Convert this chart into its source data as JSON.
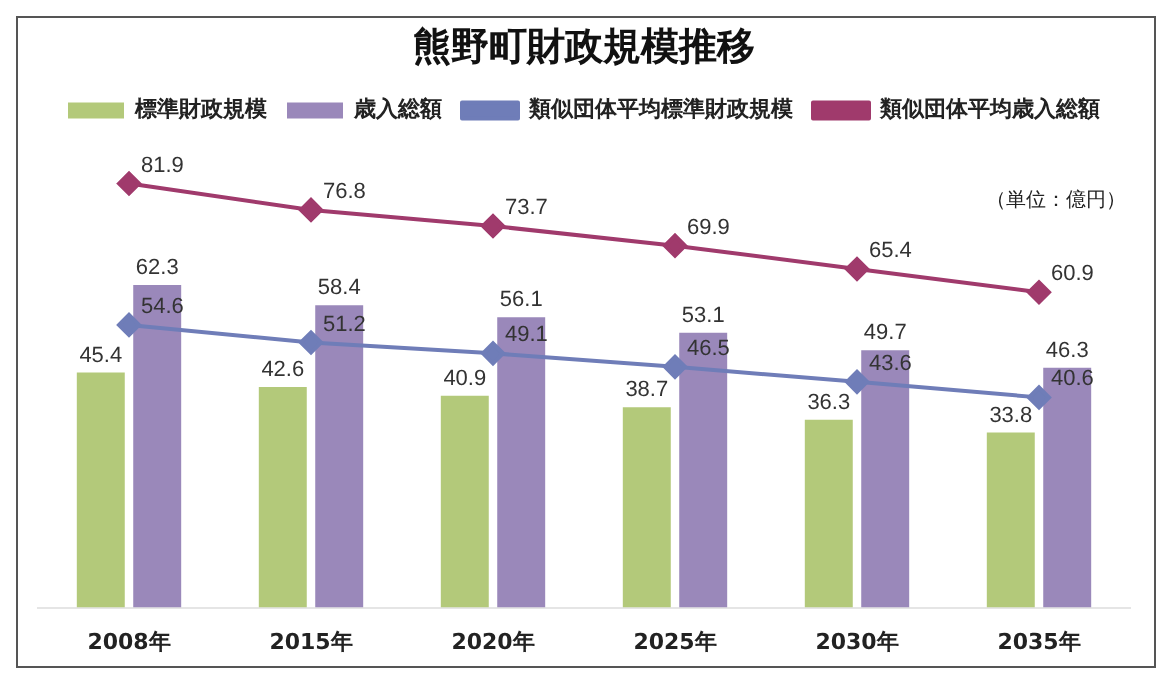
{
  "chart_data": {
    "type": "bar",
    "title": "熊野町財政規模推移",
    "categories": [
      "2008年",
      "2015年",
      "2020年",
      "2025年",
      "2030年",
      "2035年"
    ],
    "series": [
      {
        "name": "標準財政規模",
        "color": "#b3c97a",
        "values": [
          45.4,
          42.6,
          40.9,
          38.7,
          36.3,
          33.8
        ]
      },
      {
        "name": "歳入総額",
        "color": "#9a88ba",
        "values": [
          62.3,
          58.4,
          56.1,
          53.1,
          49.7,
          46.3
        ]
      },
      {
        "name": "類似団体平均標準財政規模",
        "type": "line",
        "color": "#6f7db8",
        "values": [
          54.6,
          51.2,
          49.1,
          46.5,
          43.6,
          40.6
        ]
      },
      {
        "name": "類似団体平均歳入総額",
        "type": "line",
        "color": "#a03a6c",
        "values": [
          81.9,
          76.8,
          73.7,
          69.9,
          65.4,
          60.9
        ]
      }
    ],
    "tick_labels": "x",
    "data_labels": true,
    "grid": false,
    "legend": "top",
    "marker": "diamond",
    "line_style": "solid",
    "annotations": [
      "（単位：億円）"
    ]
  }
}
